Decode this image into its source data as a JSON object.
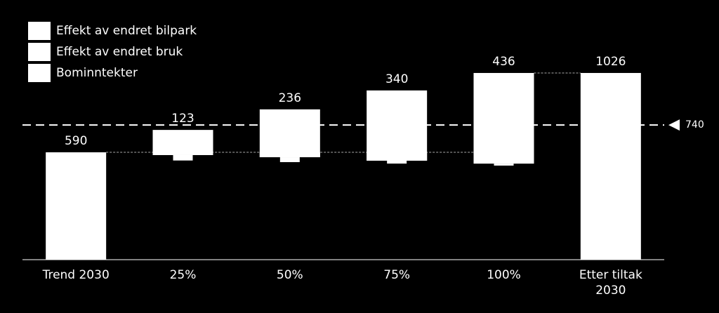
{
  "chart_data": {
    "type": "waterfall",
    "categories": [
      "Trend 2030",
      "25%",
      "50%",
      "75%",
      "100%",
      "Etter tiltak 2030"
    ],
    "totals": [
      590,
      123,
      236,
      340,
      436,
      1026
    ],
    "series": [
      {
        "name": "Effekt av endret bilpark",
        "color": "#ffffff",
        "values": [
          null,
          -15,
          -27,
          -46,
          -62,
          null
        ]
      },
      {
        "name": "Effekt av endret bruk",
        "color": "#ffffff",
        "values": [
          null,
          -30,
          -27,
          -16,
          -11,
          null
        ]
      },
      {
        "name": "Bominntekter",
        "color": "#ffffff",
        "values": [
          null,
          168,
          290,
          402,
          509,
          null
        ]
      }
    ],
    "reference_line": 740,
    "ylim": [
      0,
      1400
    ]
  }
}
